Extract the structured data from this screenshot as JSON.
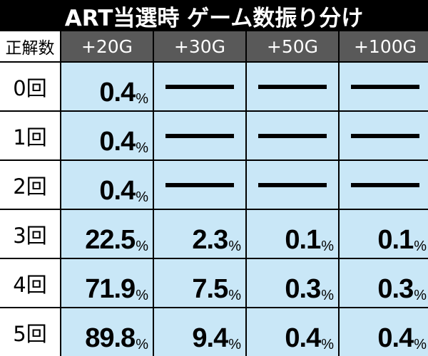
{
  "title": "ART当選時 ゲーム数振り分け",
  "corner_label": "正解数",
  "columns": [
    "+20G",
    "+30G",
    "+50G",
    "+100G"
  ],
  "rows": [
    {
      "label": "0回",
      "values": [
        "0.4",
        null,
        null,
        null
      ]
    },
    {
      "label": "1回",
      "values": [
        "0.4",
        null,
        null,
        null
      ]
    },
    {
      "label": "2回",
      "values": [
        "0.4",
        null,
        null,
        null
      ]
    },
    {
      "label": "3回",
      "values": [
        "22.5",
        "2.3",
        "0.1",
        "0.1"
      ]
    },
    {
      "label": "4回",
      "values": [
        "71.9",
        "7.5",
        "0.3",
        "0.3"
      ]
    },
    {
      "label": "5回",
      "values": [
        "89.8",
        "9.4",
        "0.4",
        "0.4"
      ]
    }
  ],
  "unit": "%",
  "colors": {
    "background": "#000000",
    "header_bg": "#595959",
    "cell_bg": "#c9e7f7",
    "row_head_bg": "#ffffff"
  }
}
